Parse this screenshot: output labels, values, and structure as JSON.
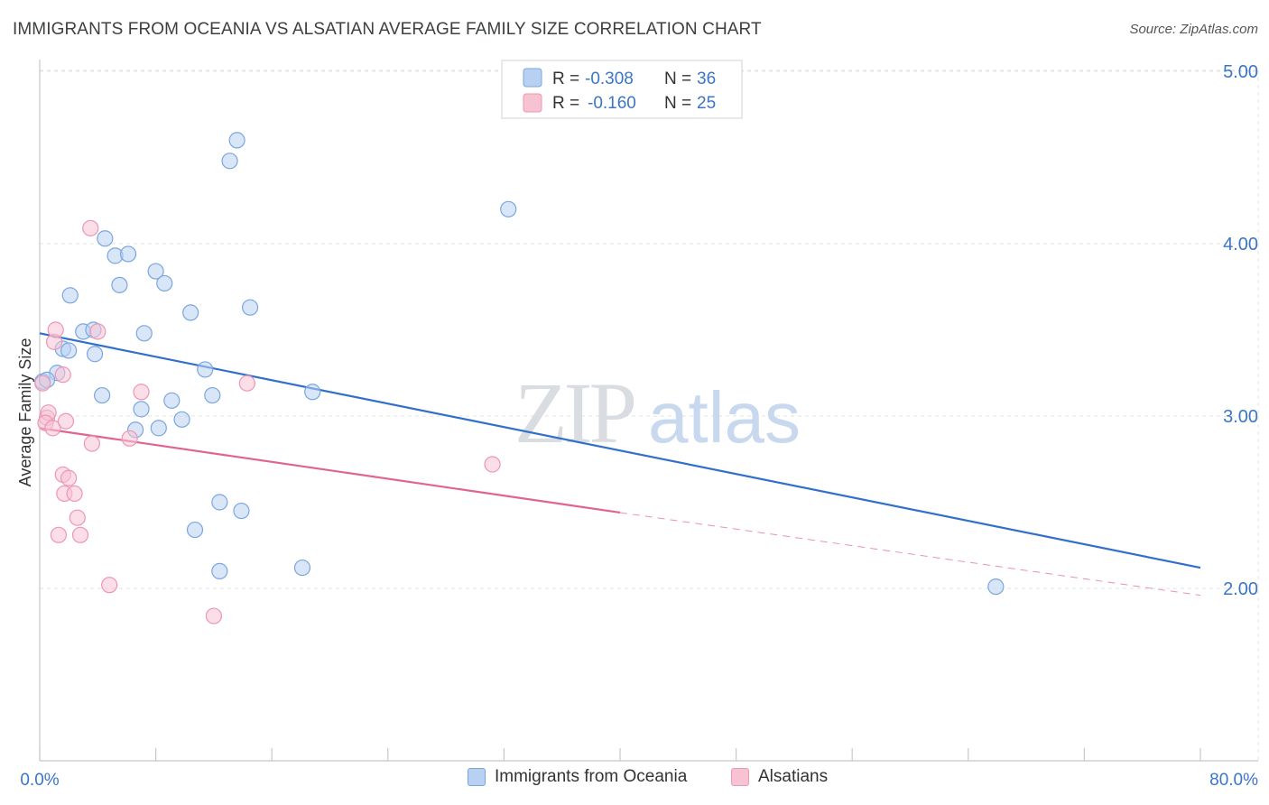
{
  "title": "IMMIGRANTS FROM OCEANIA VS ALSATIAN AVERAGE FAMILY SIZE CORRELATION CHART",
  "source": "Source: ZipAtlas.com",
  "watermark": {
    "zip": "ZIP",
    "atlas": "atlas"
  },
  "legend_top": [
    {
      "r_label": "R =",
      "r_value": "-0.308",
      "n_label": "N =",
      "n_value": "36"
    },
    {
      "r_label": "R =",
      "r_value": "-0.160",
      "n_label": "N =",
      "n_value": "25"
    }
  ],
  "legend_bottom": [
    {
      "label": "Immigrants from Oceania"
    },
    {
      "label": "Alsatians"
    }
  ],
  "colors": {
    "blue_fill": "#b8d1f3",
    "blue_stroke": "#7aa6e0",
    "blue_line": "#3070cc",
    "pink_fill": "#f7c3d3",
    "pink_stroke": "#ec97b3",
    "pink_line": "#e0648e",
    "accent_text": "#3a76c8",
    "grid": "#e3e3e3"
  },
  "chart_data": {
    "type": "scatter",
    "title": "IMMIGRANTS FROM OCEANIA VS ALSATIAN AVERAGE FAMILY SIZE CORRELATION CHART",
    "xlabel": "",
    "ylabel": "Average Family Size",
    "xlim": [
      0,
      80
    ],
    "ylim": [
      1.0,
      5.1
    ],
    "x_tick_labels": [
      "0.0%",
      "80.0%"
    ],
    "y_ticks": [
      2.0,
      3.0,
      4.0,
      5.0
    ],
    "y_tick_labels": [
      "2.00",
      "3.00",
      "4.00",
      "5.00"
    ],
    "grid": true,
    "legend_position": "top-center",
    "series": [
      {
        "name": "Immigrants from Oceania",
        "r": -0.308,
        "n": 36,
        "points": [
          [
            0.2,
            3.2
          ],
          [
            1.2,
            3.25
          ],
          [
            1.6,
            3.39
          ],
          [
            2.0,
            3.38
          ],
          [
            3.0,
            3.49
          ],
          [
            2.1,
            3.7
          ],
          [
            3.8,
            3.36
          ],
          [
            3.7,
            3.5
          ],
          [
            4.5,
            4.03
          ],
          [
            5.2,
            3.93
          ],
          [
            5.5,
            3.76
          ],
          [
            6.1,
            3.94
          ],
          [
            7.2,
            3.48
          ],
          [
            8.0,
            3.84
          ],
          [
            8.6,
            3.77
          ],
          [
            10.4,
            3.6
          ],
          [
            11.4,
            3.27
          ],
          [
            11.9,
            3.12
          ],
          [
            9.1,
            3.09
          ],
          [
            9.8,
            2.98
          ],
          [
            8.2,
            2.93
          ],
          [
            6.6,
            2.92
          ],
          [
            7.0,
            3.04
          ],
          [
            4.3,
            3.12
          ],
          [
            13.1,
            4.48
          ],
          [
            13.6,
            4.6
          ],
          [
            14.5,
            3.63
          ],
          [
            18.8,
            3.14
          ],
          [
            32.3,
            4.2
          ],
          [
            12.4,
            2.5
          ],
          [
            13.9,
            2.45
          ],
          [
            10.7,
            2.34
          ],
          [
            12.4,
            2.1
          ],
          [
            18.1,
            2.12
          ],
          [
            65.9,
            2.01
          ],
          [
            0.5,
            3.21
          ]
        ]
      },
      {
        "name": "Alsatians",
        "r": -0.16,
        "n": 25,
        "points": [
          [
            0.2,
            3.19
          ],
          [
            0.5,
            2.99
          ],
          [
            0.6,
            3.02
          ],
          [
            0.4,
            2.96
          ],
          [
            0.9,
            2.93
          ],
          [
            1.0,
            3.43
          ],
          [
            1.1,
            3.5
          ],
          [
            1.6,
            3.24
          ],
          [
            1.8,
            2.97
          ],
          [
            1.6,
            2.66
          ],
          [
            1.7,
            2.55
          ],
          [
            2.0,
            2.64
          ],
          [
            2.4,
            2.55
          ],
          [
            1.3,
            2.31
          ],
          [
            2.6,
            2.41
          ],
          [
            2.8,
            2.31
          ],
          [
            3.6,
            2.84
          ],
          [
            4.0,
            3.49
          ],
          [
            3.5,
            4.09
          ],
          [
            6.2,
            2.87
          ],
          [
            7.0,
            3.14
          ],
          [
            4.8,
            2.02
          ],
          [
            12.0,
            1.84
          ],
          [
            14.3,
            3.19
          ],
          [
            31.2,
            2.72
          ]
        ]
      }
    ],
    "trendlines": [
      {
        "series": "Immigrants from Oceania",
        "from": [
          0,
          3.48
        ],
        "to": [
          80,
          2.12
        ],
        "style": "solid"
      },
      {
        "series": "Alsatians",
        "from": [
          0,
          2.93
        ],
        "to": [
          40,
          2.44
        ],
        "style": "solid"
      },
      {
        "series": "Alsatians",
        "from": [
          40,
          2.44
        ],
        "to": [
          80,
          1.96
        ],
        "style": "dashed"
      }
    ]
  }
}
